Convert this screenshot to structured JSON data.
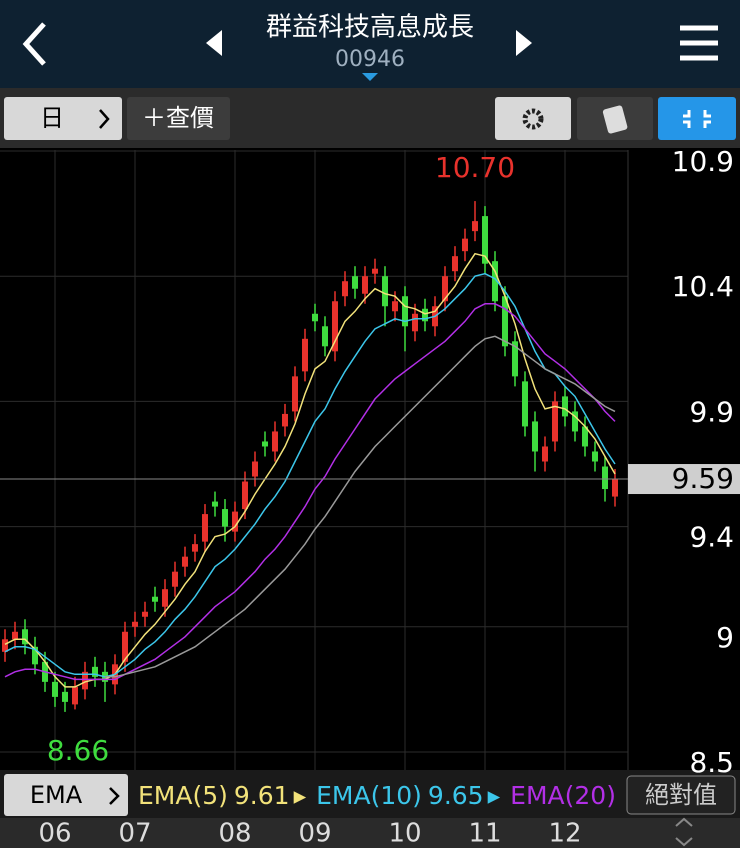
{
  "header": {
    "title": "群益科技高息成長",
    "code": "00946"
  },
  "toolbar": {
    "period": "日",
    "quote": "＋查價"
  },
  "legend_bar": {
    "indicator": "EMA",
    "mode": "絕對值"
  },
  "chart_data": {
    "type": "candlestick",
    "categories": [
      null,
      null,
      null,
      null,
      null,
      "06",
      null,
      null,
      null,
      null,
      null,
      null,
      null,
      "07",
      null,
      null,
      null,
      null,
      null,
      null,
      null,
      null,
      null,
      "08",
      null,
      null,
      null,
      null,
      null,
      null,
      null,
      "09",
      null,
      null,
      null,
      null,
      null,
      null,
      null,
      null,
      "10",
      null,
      null,
      null,
      null,
      null,
      null,
      null,
      "11",
      null,
      null,
      null,
      null,
      null,
      null,
      null,
      "12",
      null,
      null,
      null,
      null,
      null
    ],
    "open": [
      8.9,
      8.95,
      8.99,
      8.92,
      8.86,
      8.78,
      8.74,
      8.69,
      8.75,
      8.84,
      8.82,
      8.77,
      8.86,
      9.0,
      9.04,
      9.12,
      9.08,
      9.16,
      9.24,
      9.3,
      9.34,
      9.5,
      9.47,
      9.38,
      9.47,
      9.6,
      9.74,
      9.7,
      9.8,
      9.86,
      10.02,
      10.25,
      10.2,
      10.1,
      10.32,
      10.4,
      10.33,
      10.41,
      10.4,
      10.26,
      10.32,
      10.18,
      10.27,
      10.2,
      10.3,
      10.42,
      10.5,
      10.58,
      10.64,
      10.46,
      10.32,
      10.14,
      9.98,
      9.82,
      9.66,
      9.74,
      9.92,
      9.86,
      9.8,
      9.7,
      9.64,
      9.52
    ],
    "high": [
      8.99,
      9.02,
      9.03,
      8.96,
      8.9,
      8.82,
      8.78,
      8.8,
      8.86,
      8.88,
      8.86,
      8.89,
      9.02,
      9.06,
      9.1,
      9.16,
      9.19,
      9.26,
      9.32,
      9.37,
      9.49,
      9.54,
      9.51,
      9.5,
      9.62,
      9.7,
      9.78,
      9.82,
      9.89,
      10.04,
      10.19,
      10.29,
      10.24,
      10.34,
      10.42,
      10.44,
      10.44,
      10.47,
      10.44,
      10.34,
      10.36,
      10.29,
      10.31,
      10.32,
      10.44,
      10.52,
      10.59,
      10.7,
      10.68,
      10.5,
      10.36,
      10.18,
      10.02,
      9.86,
      9.76,
      9.94,
      9.96,
      9.9,
      9.84,
      9.74,
      9.68,
      9.63
    ],
    "low": [
      8.86,
      8.91,
      8.89,
      8.81,
      8.74,
      8.68,
      8.66,
      8.67,
      8.71,
      8.76,
      8.7,
      8.73,
      8.82,
      8.96,
      9.0,
      9.06,
      9.04,
      9.12,
      9.2,
      9.26,
      9.3,
      9.44,
      9.34,
      9.34,
      9.43,
      9.56,
      9.68,
      9.66,
      9.76,
      9.82,
      9.98,
      10.18,
      10.08,
      10.06,
      10.28,
      10.31,
      10.29,
      10.37,
      10.2,
      10.22,
      10.1,
      10.14,
      10.18,
      10.16,
      10.26,
      10.38,
      10.46,
      10.54,
      10.41,
      10.26,
      10.08,
      9.96,
      9.76,
      9.62,
      9.62,
      9.7,
      9.8,
      9.74,
      9.68,
      9.62,
      9.5,
      9.48
    ],
    "close": [
      8.95,
      8.98,
      8.93,
      8.85,
      8.78,
      8.72,
      8.7,
      8.76,
      8.82,
      8.8,
      8.78,
      8.85,
      8.98,
      9.02,
      9.06,
      9.1,
      9.15,
      9.22,
      9.28,
      9.33,
      9.45,
      9.48,
      9.4,
      9.46,
      9.58,
      9.66,
      9.72,
      9.78,
      9.85,
      10.0,
      10.15,
      10.22,
      10.12,
      10.3,
      10.38,
      10.35,
      10.4,
      10.43,
      10.28,
      10.3,
      10.2,
      10.25,
      10.22,
      10.28,
      10.4,
      10.48,
      10.55,
      10.62,
      10.45,
      10.3,
      10.12,
      10.0,
      9.8,
      9.7,
      9.72,
      9.9,
      9.84,
      9.78,
      9.72,
      9.66,
      9.55,
      9.59
    ],
    "up_color": "#e8322c",
    "down_color": "#3fdc3f",
    "series": [
      {
        "name": "EMA(5)",
        "color": "#f2e27a",
        "values": [
          8.93,
          8.95,
          8.95,
          8.91,
          8.86,
          8.8,
          8.76,
          8.76,
          8.78,
          8.79,
          8.79,
          8.81,
          8.87,
          8.92,
          8.97,
          9.01,
          9.06,
          9.11,
          9.17,
          9.22,
          9.3,
          9.36,
          9.37,
          9.4,
          9.46,
          9.53,
          9.59,
          9.65,
          9.72,
          9.81,
          9.93,
          10.03,
          10.06,
          10.14,
          10.22,
          10.26,
          10.31,
          10.35,
          10.33,
          10.32,
          10.28,
          10.27,
          10.25,
          10.26,
          10.31,
          10.36,
          10.43,
          10.49,
          10.48,
          10.42,
          10.32,
          10.21,
          10.07,
          9.95,
          9.87,
          9.88,
          9.87,
          9.84,
          9.8,
          9.75,
          9.68,
          9.61
        ]
      },
      {
        "name": "EMA(10)",
        "color": "#3cc6ea",
        "values": [
          8.9,
          8.92,
          8.92,
          8.91,
          8.88,
          8.85,
          8.82,
          8.81,
          8.81,
          8.81,
          8.8,
          8.81,
          8.84,
          8.87,
          8.91,
          8.94,
          8.98,
          9.03,
          9.07,
          9.12,
          9.18,
          9.24,
          9.27,
          9.31,
          9.36,
          9.41,
          9.47,
          9.52,
          9.58,
          9.66,
          9.74,
          9.82,
          9.87,
          9.95,
          10.02,
          10.08,
          10.14,
          10.19,
          10.21,
          10.23,
          10.22,
          10.23,
          10.23,
          10.24,
          10.27,
          10.31,
          10.35,
          10.4,
          10.41,
          10.39,
          10.34,
          10.28,
          10.19,
          10.1,
          10.03,
          10.01,
          9.96,
          9.92,
          9.85,
          9.78,
          9.71,
          9.65
        ]
      },
      {
        "name": "EMA(20)",
        "color": "#b22fe6",
        "values": [
          8.8,
          8.82,
          8.83,
          8.83,
          8.82,
          8.81,
          8.8,
          8.79,
          8.79,
          8.79,
          8.79,
          8.79,
          8.81,
          8.83,
          8.85,
          8.87,
          8.9,
          8.93,
          8.96,
          9.0,
          9.04,
          9.08,
          9.11,
          9.14,
          9.18,
          9.22,
          9.27,
          9.31,
          9.36,
          9.42,
          9.48,
          9.55,
          9.6,
          9.67,
          9.73,
          9.79,
          9.85,
          9.91,
          9.95,
          9.99,
          10.02,
          10.05,
          10.08,
          10.11,
          10.14,
          10.18,
          10.22,
          10.27,
          10.29,
          10.29,
          10.27,
          10.24,
          10.19,
          10.14,
          10.09,
          10.06,
          10.03,
          9.99,
          9.95,
          9.91,
          9.86,
          9.82
        ]
      },
      {
        "color": "#9a9a9a",
        "values": [
          null,
          null,
          null,
          null,
          null,
          null,
          null,
          null,
          null,
          null,
          8.8,
          8.8,
          8.81,
          8.82,
          8.83,
          8.84,
          8.86,
          8.88,
          8.9,
          8.92,
          8.95,
          8.98,
          9.01,
          9.04,
          9.07,
          9.11,
          9.15,
          9.19,
          9.23,
          9.28,
          9.33,
          9.39,
          9.44,
          9.5,
          9.56,
          9.62,
          9.67,
          9.72,
          9.76,
          9.8,
          9.84,
          9.88,
          9.92,
          9.96,
          10.0,
          10.04,
          10.08,
          10.12,
          10.15,
          10.16,
          10.14,
          10.12,
          10.09,
          10.06,
          10.03,
          10.01,
          9.99,
          9.97,
          9.94,
          9.91,
          9.88,
          9.86
        ]
      }
    ],
    "annotations": {
      "max": {
        "value": 10.7,
        "label": "10.70"
      },
      "min": 8.66,
      "last": 9.59
    },
    "ylim": [
      8.42,
      10.92
    ],
    "yticks": [
      10.9,
      10.4,
      9.9,
      9.4,
      9.0,
      8.5
    ],
    "grid": true
  }
}
